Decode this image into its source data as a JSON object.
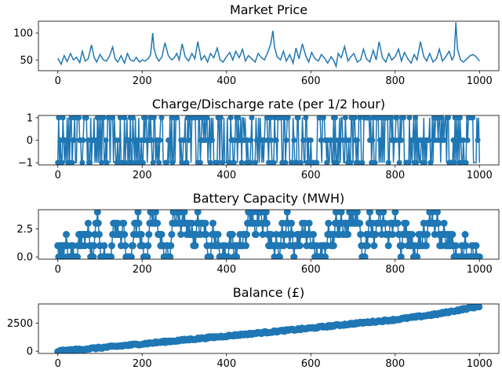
{
  "chart_data": [
    {
      "type": "line",
      "title": "Market Price",
      "xlabel": "",
      "ylabel": "",
      "xlim": [
        -46,
        1046
      ],
      "ylim": [
        30,
        122
      ],
      "xticks": [
        0,
        200,
        400,
        600,
        800,
        1000
      ],
      "yticks": [
        50,
        100
      ],
      "color": "#1f77b4",
      "series": [
        {
          "x": [
            0,
            8,
            15,
            22,
            30,
            37,
            44,
            52,
            58,
            65,
            72,
            80,
            86,
            92,
            100,
            108,
            115,
            122,
            130,
            136,
            142,
            150,
            158,
            165,
            172,
            180,
            186,
            194,
            200,
            207,
            214,
            220,
            225,
            228,
            234,
            240,
            247,
            254,
            262,
            270,
            276,
            282,
            288,
            295,
            302,
            310,
            318,
            325,
            332,
            340,
            348,
            355,
            362,
            370,
            378,
            385,
            392,
            400,
            408,
            415,
            422,
            430,
            438,
            445,
            452,
            460,
            468,
            475,
            482,
            490,
            498,
            505,
            510,
            514,
            520,
            528,
            535,
            542,
            550,
            558,
            565,
            572,
            580,
            588,
            595,
            602,
            610,
            618,
            625,
            632,
            640,
            648,
            655,
            660,
            665,
            672,
            680,
            688,
            695,
            702,
            710,
            718,
            725,
            732,
            740,
            748,
            755,
            762,
            770,
            778,
            785,
            792,
            800,
            808,
            815,
            822,
            830,
            838,
            845,
            852,
            860,
            868,
            875,
            882,
            890,
            898,
            905,
            912,
            920,
            928,
            935,
            940,
            944,
            948,
            955,
            962,
            970,
            978,
            985,
            992,
            1000
          ],
          "y": [
            53,
            42,
            58,
            47,
            62,
            50,
            55,
            45,
            66,
            48,
            52,
            78,
            55,
            46,
            60,
            50,
            48,
            56,
            74,
            52,
            46,
            58,
            44,
            62,
            50,
            48,
            55,
            46,
            50,
            48,
            52,
            60,
            100,
            72,
            55,
            48,
            56,
            82,
            58,
            50,
            54,
            62,
            50,
            80,
            56,
            48,
            62,
            52,
            84,
            50,
            58,
            46,
            62,
            54,
            72,
            50,
            46,
            56,
            64,
            50,
            66,
            54,
            70,
            48,
            58,
            52,
            46,
            62,
            55,
            50,
            64,
            80,
            104,
            74,
            56,
            50,
            66,
            48,
            60,
            44,
            72,
            52,
            80,
            58,
            46,
            64,
            52,
            48,
            60,
            54,
            44,
            56,
            48,
            38,
            62,
            54,
            75,
            48,
            56,
            62,
            46,
            50,
            70,
            52,
            46,
            68,
            50,
            84,
            54,
            46,
            62,
            50,
            56,
            70,
            48,
            64,
            52,
            44,
            60,
            50,
            84,
            56,
            48,
            62,
            46,
            52,
            70,
            48,
            56,
            66,
            50,
            58,
            120,
            70,
            50,
            46,
            52,
            58,
            60,
            56,
            48
          ]
        }
      ]
    },
    {
      "type": "line",
      "title": "Charge/Discharge rate (per 1/2 hour)",
      "xlabel": "",
      "ylabel": "",
      "xlim": [
        -46,
        1046
      ],
      "ylim": [
        -1.1,
        1.1
      ],
      "xticks": [
        0,
        200,
        400,
        600,
        800,
        1000
      ],
      "yticks": [
        -1,
        0,
        1
      ],
      "markers": true,
      "levels": [
        -1,
        0,
        1
      ],
      "color": "#1f77b4"
    },
    {
      "type": "line",
      "title": "Battery Capacity (MWH)",
      "xlabel": "",
      "ylabel": "",
      "xlim": [
        -46,
        1046
      ],
      "ylim": [
        -0.2,
        4.2
      ],
      "xticks": [
        0,
        200,
        400,
        600,
        800,
        1000
      ],
      "yticks": [
        0.0,
        2.5
      ],
      "ytick_labels": [
        "0.0",
        "2.5"
      ],
      "markers": true,
      "levels": [
        0,
        1,
        2,
        3,
        4
      ],
      "color": "#1f77b4"
    },
    {
      "type": "line",
      "title": "Balance (£)",
      "xlabel": "",
      "ylabel": "",
      "xlim": [
        -46,
        1046
      ],
      "ylim": [
        -200,
        4200
      ],
      "xticks": [
        0,
        200,
        400,
        600,
        800,
        1000
      ],
      "yticks": [
        0,
        2500
      ],
      "markers": true,
      "color": "#1f77b4",
      "series": [
        {
          "x": [
            0,
            100,
            200,
            300,
            400,
            500,
            600,
            700,
            800,
            900,
            1000
          ],
          "y": [
            0,
            300,
            650,
            1000,
            1350,
            1700,
            2050,
            2450,
            2800,
            3300,
            4000
          ]
        }
      ]
    }
  ]
}
